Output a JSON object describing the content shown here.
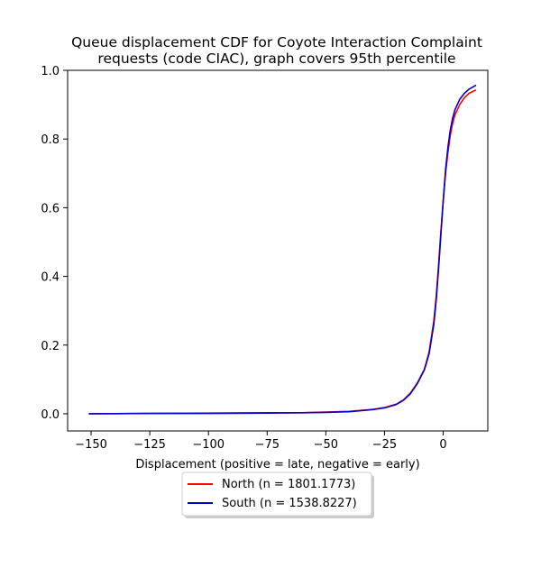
{
  "chart_data": {
    "type": "line",
    "title_lines": [
      "Queue displacement CDF for Coyote Interaction Complaint",
      "requests (code CIAC), graph covers 95th percentile"
    ],
    "xlabel": "Displacement (positive = late, negative = early)",
    "ylabel": "",
    "xlim": [
      -160,
      19
    ],
    "ylim": [
      -0.05,
      1.0
    ],
    "x_ticks": [
      -150,
      -125,
      -100,
      -75,
      -50,
      -25,
      0
    ],
    "x_tick_labels": [
      "−150",
      "−125",
      "−100",
      "−75",
      "−50",
      "−25",
      "0"
    ],
    "y_ticks": [
      0.0,
      0.2,
      0.4,
      0.6,
      0.8,
      1.0
    ],
    "y_tick_labels": [
      "0.0",
      "0.2",
      "0.4",
      "0.6",
      "0.8",
      "1.0"
    ],
    "grid": false,
    "legend_position": "below",
    "series": [
      {
        "name": "North (n = 1801.1773)",
        "color": "#ff0000",
        "points": [
          [
            -151,
            0.0
          ],
          [
            -125,
            0.001
          ],
          [
            -100,
            0.002
          ],
          [
            -75,
            0.003
          ],
          [
            -60,
            0.003
          ],
          [
            -50,
            0.005
          ],
          [
            -40,
            0.007
          ],
          [
            -30,
            0.013
          ],
          [
            -25,
            0.018
          ],
          [
            -20,
            0.028
          ],
          [
            -17,
            0.04
          ],
          [
            -14,
            0.06
          ],
          [
            -11,
            0.09
          ],
          [
            -8,
            0.13
          ],
          [
            -6,
            0.18
          ],
          [
            -4,
            0.27
          ],
          [
            -3,
            0.34
          ],
          [
            -2,
            0.43
          ],
          [
            -1,
            0.53
          ],
          [
            0,
            0.62
          ],
          [
            1,
            0.7
          ],
          [
            2,
            0.76
          ],
          [
            3,
            0.81
          ],
          [
            4,
            0.845
          ],
          [
            5,
            0.87
          ],
          [
            7,
            0.9
          ],
          [
            9,
            0.92
          ],
          [
            11,
            0.933
          ],
          [
            14,
            0.943
          ]
        ]
      },
      {
        "name": "South (n = 1538.8227)",
        "color": "#0000cc",
        "points": [
          [
            -151,
            0.0
          ],
          [
            -125,
            0.001
          ],
          [
            -100,
            0.001
          ],
          [
            -75,
            0.002
          ],
          [
            -60,
            0.003
          ],
          [
            -50,
            0.004
          ],
          [
            -40,
            0.006
          ],
          [
            -30,
            0.012
          ],
          [
            -25,
            0.017
          ],
          [
            -20,
            0.027
          ],
          [
            -17,
            0.039
          ],
          [
            -14,
            0.058
          ],
          [
            -11,
            0.088
          ],
          [
            -8,
            0.128
          ],
          [
            -6,
            0.175
          ],
          [
            -4,
            0.26
          ],
          [
            -3,
            0.33
          ],
          [
            -2,
            0.42
          ],
          [
            -1,
            0.52
          ],
          [
            0,
            0.62
          ],
          [
            1,
            0.71
          ],
          [
            2,
            0.775
          ],
          [
            3,
            0.825
          ],
          [
            4,
            0.86
          ],
          [
            5,
            0.885
          ],
          [
            7,
            0.915
          ],
          [
            9,
            0.933
          ],
          [
            11,
            0.945
          ],
          [
            14,
            0.957
          ]
        ]
      }
    ]
  }
}
